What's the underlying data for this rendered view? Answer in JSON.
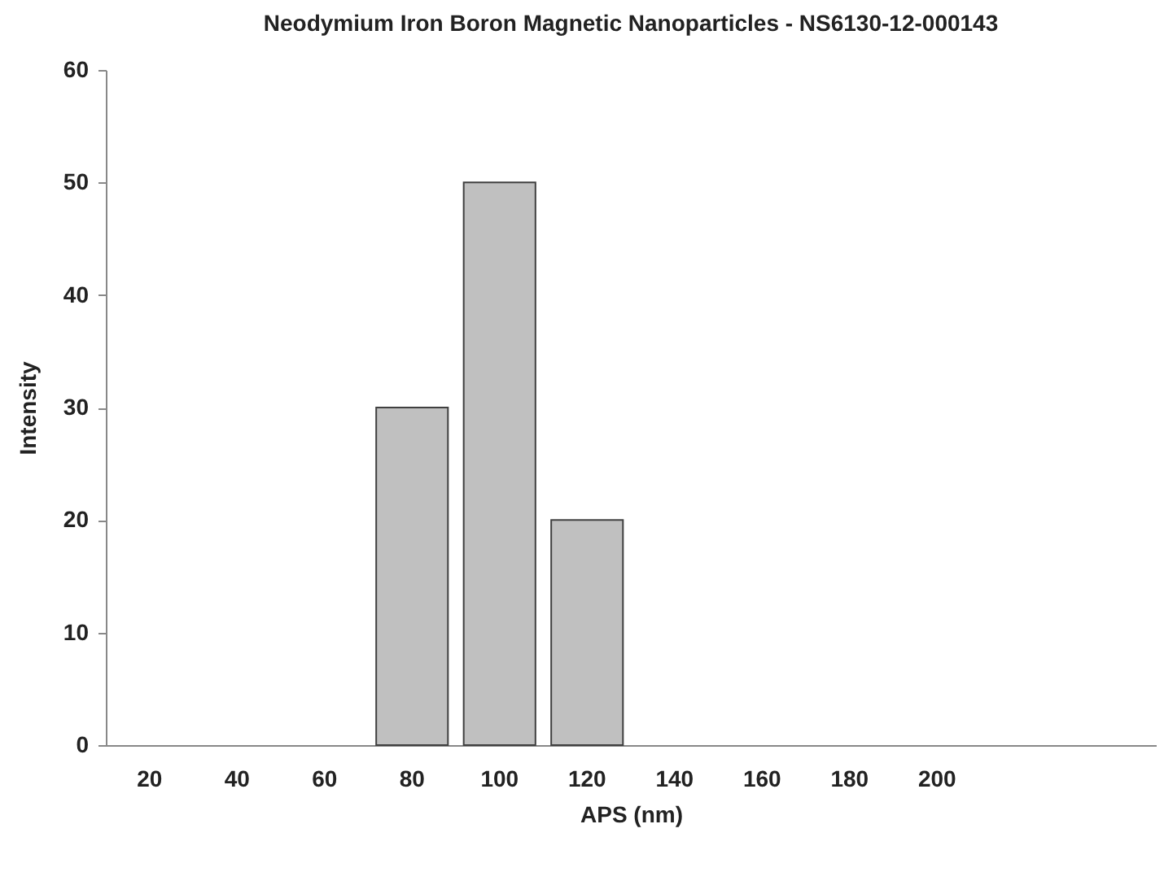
{
  "chart_data": {
    "type": "bar",
    "title": "Neodymium Iron Boron Magnetic Nanoparticles - NS6130-12-000143",
    "xlabel": "APS (nm)",
    "ylabel": "Intensity",
    "categories": [
      "20",
      "40",
      "60",
      "80",
      "100",
      "120",
      "140",
      "160",
      "180",
      "200",
      null,
      null
    ],
    "values": [
      0,
      0,
      0,
      30,
      50,
      20,
      0,
      0,
      0,
      0,
      null,
      null
    ],
    "color": "#c0c0c0",
    "ylim": [
      0,
      60
    ],
    "yticks": [
      0,
      10,
      20,
      30,
      40,
      50,
      60
    ],
    "grid": false
  }
}
